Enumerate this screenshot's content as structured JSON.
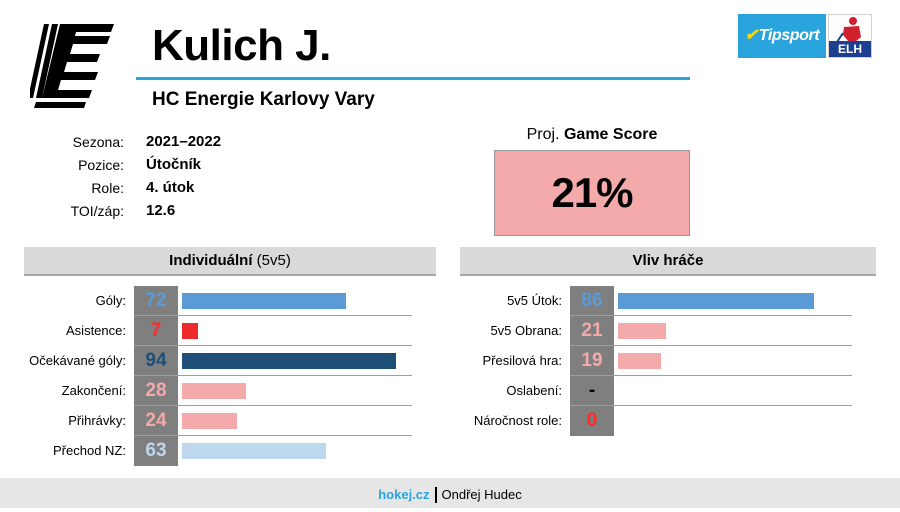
{
  "player": {
    "name": "Kulich J.",
    "team": "HC Energie Karlovy Vary"
  },
  "sponsor": {
    "brand": "Tipsport",
    "league": "ELH"
  },
  "info": {
    "labels": [
      "Sezona:",
      "Pozice:",
      "Role:",
      "TOI/záp:"
    ],
    "values": [
      "2021–2022",
      "Útočník",
      "4. útok",
      "12.6"
    ]
  },
  "game_score": {
    "title_prefix": "Proj.",
    "title_bold": "Game Score",
    "value": "21%",
    "percent": 21,
    "color": "#f4a9ab"
  },
  "individual": {
    "header_bold": "Individuální",
    "header_rest": " (5v5)",
    "rows": [
      {
        "label": "Góly:",
        "value": "72",
        "percent": 72,
        "value_color": "#5b9bd5",
        "bar_color": "#5b9bd5"
      },
      {
        "label": "Asistence:",
        "value": "7",
        "percent": 7,
        "value_color": "#ff2a2a",
        "bar_color": "#ee2b2b"
      },
      {
        "label": "Očekávané góly:",
        "value": "94",
        "percent": 94,
        "value_color": "#1f4e79",
        "bar_color": "#1f4e79"
      },
      {
        "label": "Zakončení:",
        "value": "28",
        "percent": 28,
        "value_color": "#f4a9ab",
        "bar_color": "#f4a9ab"
      },
      {
        "label": "Přihrávky:",
        "value": "24",
        "percent": 24,
        "value_color": "#f4a9ab",
        "bar_color": "#f4a9ab"
      },
      {
        "label": "Přechod NZ:",
        "value": "63",
        "percent": 63,
        "value_color": "#bdd7ee",
        "bar_color": "#bdd7ee"
      }
    ]
  },
  "impact": {
    "header_bold": "Vliv hráče",
    "rows": [
      {
        "label": "5v5 Útok:",
        "value": "86",
        "percent": 86,
        "value_color": "#5b9bd5",
        "bar_color": "#5b9bd5"
      },
      {
        "label": "5v5 Obrana:",
        "value": "21",
        "percent": 21,
        "value_color": "#f4a9ab",
        "bar_color": "#f4a9ab"
      },
      {
        "label": "Přesilová hra:",
        "value": "19",
        "percent": 19,
        "value_color": "#f4a9ab",
        "bar_color": "#f4a9ab"
      },
      {
        "label": "Oslabení:",
        "value": "-",
        "percent": null,
        "value_color": "#000000",
        "bar_color": "#000000"
      },
      {
        "label": "Náročnost role:",
        "value": "0",
        "percent": 0,
        "value_color": "#ff2a2a",
        "bar_color": "#ee2b2b"
      }
    ]
  },
  "footer": {
    "source": "hokej.cz",
    "author": "Ondřej Hudec"
  }
}
